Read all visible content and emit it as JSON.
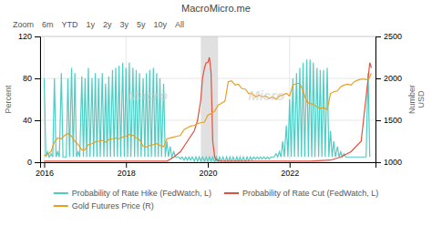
{
  "chart_data": {
    "type": "line",
    "title": "MacroMicro.me",
    "y_label": "Percent",
    "y2_label": "Number\nUSD",
    "annotations": {
      "zoom": [
        "Zoom",
        "6m",
        "YTD",
        "1y",
        "2y",
        "3y",
        "5y",
        "10y",
        "All"
      ],
      "watermark": [
        "Macro",
        "Micro"
      ]
    },
    "xlim": [
      2015.9,
      2024.1
    ],
    "xticks": [
      2016,
      2018,
      2020,
      2022
    ],
    "ylim": [
      0,
      120
    ],
    "yticks": [
      0,
      40,
      80,
      120
    ],
    "y2lim": [
      1000,
      2500
    ],
    "y2ticks": [
      1000,
      1500,
      2000,
      2500
    ],
    "grid": true,
    "legend": "bottom",
    "shade": {
      "x": [
        2019.83,
        2020.25
      ],
      "color": "#e0e0e0"
    },
    "series": [
      {
        "name": "Probability of Rate Hike (FedWatch, L)",
        "color": "#4ecdc4",
        "x": [
          2016.0,
          2016.04,
          2016.08,
          2016.12,
          2016.17,
          2016.21,
          2016.25,
          2016.29,
          2016.33,
          2016.37,
          2016.42,
          2016.46,
          2016.5,
          2016.54,
          2016.58,
          2016.62,
          2016.67,
          2016.71,
          2016.75,
          2016.79,
          2016.83,
          2016.87,
          2016.92,
          2016.96,
          2017.0,
          2017.04,
          2017.08,
          2017.12,
          2017.17,
          2017.21,
          2017.25,
          2017.29,
          2017.33,
          2017.37,
          2017.42,
          2017.46,
          2017.5,
          2017.54,
          2017.58,
          2017.62,
          2017.67,
          2017.71,
          2017.75,
          2017.79,
          2017.83,
          2017.87,
          2017.92,
          2017.96,
          2018.0,
          2018.04,
          2018.08,
          2018.12,
          2018.17,
          2018.21,
          2018.25,
          2018.29,
          2018.33,
          2018.37,
          2018.42,
          2018.46,
          2018.5,
          2018.54,
          2018.58,
          2018.62,
          2018.67,
          2018.71,
          2018.75,
          2018.79,
          2018.83,
          2018.87,
          2018.92,
          2018.96,
          2019.0,
          2019.04,
          2019.08,
          2019.12,
          2019.17,
          2019.21,
          2019.25,
          2019.29,
          2019.33,
          2019.37,
          2019.42,
          2019.46,
          2019.5,
          2019.54,
          2019.58,
          2019.62,
          2019.67,
          2019.71,
          2019.75,
          2019.79,
          2019.83,
          2019.87,
          2019.92,
          2019.96,
          2020.0,
          2020.04,
          2020.08,
          2020.12,
          2020.17,
          2020.21,
          2020.25,
          2020.29,
          2020.33,
          2020.37,
          2020.42,
          2020.46,
          2020.5,
          2020.54,
          2020.58,
          2020.62,
          2020.67,
          2020.71,
          2020.75,
          2020.79,
          2020.83,
          2020.87,
          2020.92,
          2020.96,
          2021.0,
          2021.04,
          2021.08,
          2021.12,
          2021.17,
          2021.21,
          2021.25,
          2021.29,
          2021.33,
          2021.37,
          2021.42,
          2021.46,
          2021.5,
          2021.54,
          2021.58,
          2021.62,
          2021.67,
          2021.71,
          2021.75,
          2021.79,
          2021.83,
          2021.87,
          2021.92,
          2021.96,
          2022.0,
          2022.04,
          2022.08,
          2022.12,
          2022.17,
          2022.21,
          2022.25,
          2022.29,
          2022.33,
          2022.37,
          2022.42,
          2022.46,
          2022.5,
          2022.54,
          2022.58,
          2022.62,
          2022.67,
          2022.71,
          2022.75,
          2022.79,
          2022.83,
          2022.87,
          2022.92,
          2022.96,
          2023.0,
          2023.04,
          2023.08,
          2023.12,
          2023.17,
          2023.21,
          2023.25,
          2023.29,
          2023.33,
          2023.37,
          2023.42,
          2023.46,
          2023.5,
          2023.54,
          2023.58,
          2023.62,
          2023.67,
          2023.71,
          2023.75,
          2023.79,
          2023.83,
          2023.87,
          2023.92,
          2023.96
        ],
        "values": [
          80,
          5,
          10,
          5,
          8,
          5,
          80,
          5,
          10,
          5,
          85,
          5,
          5,
          5,
          80,
          5,
          90,
          5,
          85,
          5,
          10,
          5,
          82,
          5,
          80,
          5,
          90,
          5,
          80,
          5,
          85,
          5,
          80,
          5,
          85,
          5,
          75,
          5,
          82,
          5,
          88,
          5,
          90,
          5,
          92,
          5,
          95,
          5,
          90,
          5,
          95,
          5,
          90,
          5,
          88,
          5,
          85,
          5,
          80,
          5,
          85,
          5,
          88,
          5,
          90,
          5,
          85,
          5,
          80,
          5,
          75,
          5,
          20,
          5,
          15,
          5,
          10,
          5,
          5,
          5,
          3,
          5,
          2,
          5,
          2,
          5,
          2,
          5,
          1,
          5,
          1,
          5,
          1,
          5,
          1,
          5,
          1,
          5,
          1,
          5,
          0,
          5,
          0,
          5,
          0,
          5,
          0,
          5,
          0,
          5,
          0,
          5,
          0,
          5,
          0,
          5,
          0,
          5,
          0,
          5,
          1,
          5,
          2,
          5,
          3,
          5,
          3,
          5,
          3,
          5,
          3,
          5,
          3,
          5,
          5,
          5,
          8,
          5,
          10,
          5,
          20,
          5,
          35,
          5,
          60,
          5,
          80,
          5,
          85,
          5,
          90,
          5,
          95,
          5,
          98,
          5,
          98,
          5,
          95,
          5,
          90,
          5,
          88,
          5,
          88,
          5,
          90,
          5,
          30,
          5,
          20,
          5,
          15,
          5,
          10,
          5,
          8,
          5,
          5,
          5,
          5,
          5,
          5,
          5,
          5,
          5,
          5,
          5,
          5,
          5,
          85,
          5
        ]
      },
      {
        "name": "Probability of Rate Cut (FedWatch, L)",
        "color": "#e05040",
        "x": [
          2016.0,
          2016.25,
          2016.5,
          2016.75,
          2017.0,
          2017.25,
          2017.5,
          2017.75,
          2018.0,
          2018.25,
          2018.5,
          2018.75,
          2019.0,
          2019.17,
          2019.33,
          2019.5,
          2019.67,
          2019.75,
          2019.83,
          2019.87,
          2019.92,
          2019.96,
          2020.0,
          2020.04,
          2020.08,
          2020.12,
          2020.17,
          2020.21,
          2020.25,
          2020.29,
          2020.33,
          2020.5,
          2020.75,
          2021.0,
          2021.5,
          2022.0,
          2022.5,
          2023.0,
          2023.25,
          2023.5,
          2023.75,
          2023.92,
          2023.96,
          2024.0
        ],
        "values": [
          1,
          1,
          1,
          1,
          1,
          1,
          1,
          1,
          1,
          1,
          1,
          1,
          1,
          5,
          10,
          20,
          30,
          40,
          60,
          80,
          90,
          95,
          95,
          100,
          85,
          20,
          5,
          2,
          2,
          1,
          1,
          1,
          1,
          1,
          1,
          1,
          1,
          2,
          5,
          10,
          20,
          80,
          95,
          90
        ]
      },
      {
        "name": "Gold Futures Price (R)",
        "color": "#e8a020",
        "axis": "y2",
        "x": [
          2016.0,
          2016.08,
          2016.17,
          2016.25,
          2016.33,
          2016.42,
          2016.5,
          2016.58,
          2016.67,
          2016.75,
          2016.83,
          2016.92,
          2017.0,
          2017.08,
          2017.17,
          2017.25,
          2017.33,
          2017.42,
          2017.5,
          2017.58,
          2017.67,
          2017.75,
          2017.83,
          2017.92,
          2018.0,
          2018.08,
          2018.17,
          2018.25,
          2018.33,
          2018.42,
          2018.5,
          2018.58,
          2018.67,
          2018.75,
          2018.83,
          2018.92,
          2019.0,
          2019.08,
          2019.17,
          2019.25,
          2019.33,
          2019.42,
          2019.5,
          2019.58,
          2019.67,
          2019.75,
          2019.83,
          2019.92,
          2020.0,
          2020.08,
          2020.17,
          2020.25,
          2020.33,
          2020.42,
          2020.5,
          2020.58,
          2020.67,
          2020.75,
          2020.83,
          2020.92,
          2021.0,
          2021.08,
          2021.17,
          2021.25,
          2021.33,
          2021.42,
          2021.5,
          2021.58,
          2021.67,
          2021.75,
          2021.83,
          2021.92,
          2022.0,
          2022.08,
          2022.17,
          2022.25,
          2022.33,
          2022.42,
          2022.5,
          2022.58,
          2022.67,
          2022.75,
          2022.83,
          2022.92,
          2023.0,
          2023.08,
          2023.17,
          2023.25,
          2023.33,
          2023.42,
          2023.5,
          2023.58,
          2023.67,
          2023.75,
          2023.83,
          2023.92,
          2024.0
        ],
        "values": [
          1080,
          1090,
          1130,
          1240,
          1290,
          1280,
          1320,
          1340,
          1310,
          1250,
          1210,
          1145,
          1150,
          1210,
          1220,
          1240,
          1250,
          1260,
          1240,
          1270,
          1280,
          1290,
          1280,
          1300,
          1310,
          1330,
          1320,
          1290,
          1270,
          1190,
          1180,
          1200,
          1210,
          1220,
          1200,
          1185,
          1280,
          1290,
          1300,
          1310,
          1320,
          1390,
          1410,
          1430,
          1440,
          1460,
          1470,
          1480,
          1560,
          1580,
          1610,
          1680,
          1700,
          1730,
          1960,
          1970,
          1920,
          1930,
          1880,
          1870,
          1820,
          1820,
          1780,
          1800,
          1780,
          1790,
          1760,
          1780,
          1750,
          1790,
          1800,
          1820,
          1790,
          1920,
          1940,
          1940,
          1850,
          1720,
          1700,
          1690,
          1660,
          1640,
          1650,
          1630,
          1820,
          1840,
          1850,
          1900,
          1920,
          1930,
          1920,
          1960,
          1980,
          1990,
          1990,
          1980,
          2060
        ]
      }
    ]
  }
}
